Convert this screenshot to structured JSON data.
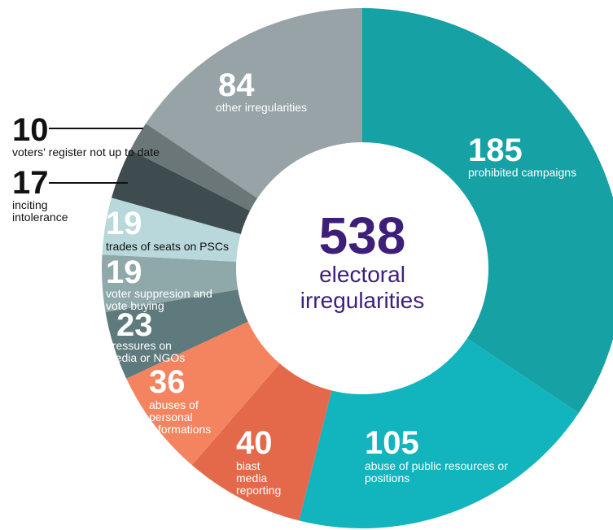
{
  "chart_data": {
    "type": "donut",
    "total": 538,
    "center_label": "electoral irregularities",
    "categories": [
      "prohibited campaigns",
      "abuse of public resources or positions",
      "biast media reporting",
      "abuses of personal informations",
      "pressures on media or NGOs",
      "voter suppresion and vote buying",
      "trades of seats on PSCs",
      "inciting intolerance",
      "voters' register not up to date",
      "other irregularities"
    ],
    "values": [
      185,
      105,
      40,
      36,
      23,
      19,
      19,
      17,
      10,
      84
    ],
    "colors": [
      "#16a1a4",
      "#12b4bd",
      "#e4694a",
      "#f4845f",
      "#5f7a7c",
      "#8fa9ab",
      "#b9d8dc",
      "#3e4c4f",
      "#6a7678",
      "#97a3a6"
    ]
  }
}
